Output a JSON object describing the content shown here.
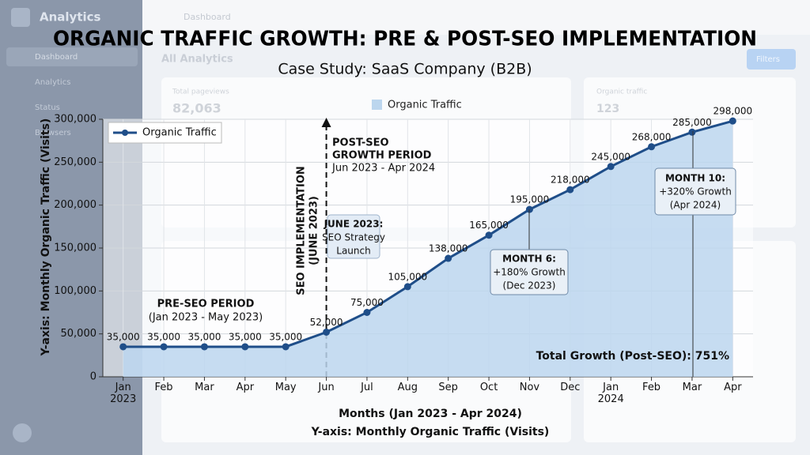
{
  "chart_data": {
    "type": "line",
    "title": "ORGANIC TRAFFIC GROWTH: PRE & POST-SEO IMPLEMENTATION",
    "subtitle": "Case Study: SaaS Company (B2B)",
    "x_label": "Months (Jan 2023 - Apr 2024)",
    "x_label_note": "Y-axis: Monthly Organic Traffic (Visits)",
    "y_label": "Y-axis: Monthly Organic Traffic (Visits)",
    "categories": [
      "Jan 2023",
      "Feb",
      "Mar",
      "Apr",
      "May",
      "Jun",
      "Jul",
      "Aug",
      "Sep",
      "Oct",
      "Nov",
      "Dec",
      "Jan 2024",
      "Feb",
      "Mar",
      "Apr"
    ],
    "series": [
      {
        "name": "Organic Traffic",
        "color": "#1f4e89",
        "area_color": "#bcd6ee",
        "values": [
          35000,
          35000,
          35000,
          35000,
          35000,
          52000,
          75000,
          105000,
          138000,
          165000,
          195000,
          218000,
          245000,
          268000,
          285000,
          298000
        ],
        "value_labels": [
          "35,000",
          "35,000",
          "35,000",
          "35,000",
          "35,000",
          "52,000",
          "75,000",
          "105,000",
          "138,000",
          "165,000",
          "195,000",
          "218,000",
          "245,000",
          "268,000",
          "285,000",
          "298,000"
        ]
      }
    ],
    "ylim": [
      0,
      300000
    ],
    "yticks": [
      0,
      {
        "value": 50000,
        "label": "50,000"
      },
      {
        "value": 100000,
        "label": "100,000"
      },
      {
        "value": 150000,
        "label": "150,000"
      },
      {
        "value": 200000,
        "label": "200,000"
      },
      {
        "value": 250000,
        "label": "250,000"
      },
      {
        "value": 300000,
        "label": "300,000"
      }
    ],
    "grid": true,
    "legend": "top-left",
    "annotations": {
      "pre_seo": {
        "title": "PRE-SEO PERIOD",
        "range": "(Jan 2023 - May 2023)"
      },
      "post_seo": {
        "title_lines": [
          "POST-SEO",
          "GROWTH PERIOD"
        ],
        "range": "Jun 2023 - Apr 2024"
      },
      "implementation": [
        "SEO IMPLEMENTATION",
        "(JUNE 2023)"
      ],
      "june": [
        "JUNE 2023:",
        "SEO Strategy",
        "Launch"
      ],
      "month6": [
        "MONTH 6:",
        "+180% Growth",
        "(Dec 2023)"
      ],
      "month10": [
        "MONTH 10:",
        "+320% Growth",
        "(Apr 2024)"
      ],
      "total": "Total Growth (Post-SEO): 751%"
    }
  },
  "background": {
    "app_name": "Analytics",
    "breadcrumb": "Dashboard",
    "heading": "All Analytics",
    "button": "Filters",
    "menu": [
      "Dashboard",
      "Analytics",
      "Status",
      "Browsers"
    ],
    "cards": [
      {
        "label": "Total pageviews",
        "value": "82,063"
      },
      {
        "label": "Organic traffic",
        "value": "123"
      }
    ]
  }
}
